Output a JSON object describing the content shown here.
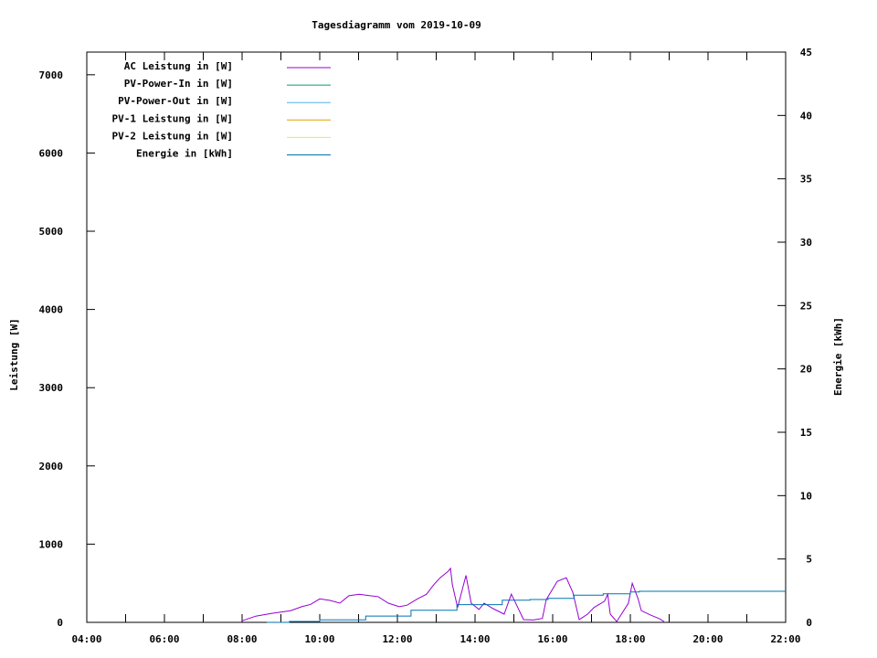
{
  "chart_data": {
    "type": "line",
    "title": "Tagesdiagramm vom 2019-10-09",
    "ylabel": "Leistung [W]",
    "y2label": "Energie [kWh]",
    "xlim": [
      "04:00",
      "22:00"
    ],
    "ylim": [
      0,
      7290
    ],
    "y2lim": [
      0,
      45
    ],
    "x_ticks": [
      "04:00",
      "06:00",
      "08:00",
      "10:00",
      "12:00",
      "14:00",
      "16:00",
      "18:00",
      "20:00",
      "22:00"
    ],
    "y_ticks": [
      0,
      1000,
      2000,
      3000,
      4000,
      5000,
      6000,
      7000
    ],
    "y2_ticks": [
      0,
      5,
      10,
      15,
      20,
      25,
      30,
      35,
      40,
      45
    ],
    "grid": false,
    "legend_position": "top-left",
    "series": [
      {
        "name": "AC Leistung in [W]",
        "color": "#9400d3",
        "axis": "left",
        "x": [
          "08:00",
          "08:21",
          "08:45",
          "09:15",
          "09:32",
          "09:46",
          "10:00",
          "10:16",
          "10:31",
          "10:45",
          "11:01",
          "11:18",
          "11:30",
          "11:46",
          "12:03",
          "12:15",
          "12:31",
          "12:45",
          "12:56",
          "13:06",
          "13:18",
          "13:22",
          "13:25",
          "13:33",
          "13:46",
          "13:54",
          "14:06",
          "14:14",
          "14:28",
          "14:45",
          "14:56",
          "15:02",
          "15:15",
          "15:30",
          "15:44",
          "15:50",
          "16:07",
          "16:21",
          "16:31",
          "16:41",
          "16:54",
          "17:04",
          "17:20",
          "17:25",
          "17:29",
          "17:39",
          "17:57",
          "18:03",
          "18:12",
          "18:17",
          "18:31",
          "18:45",
          "18:52"
        ],
        "y": [
          20,
          80,
          115,
          150,
          200,
          230,
          300,
          280,
          245,
          340,
          360,
          340,
          330,
          245,
          200,
          220,
          300,
          360,
          480,
          570,
          650,
          690,
          480,
          190,
          600,
          245,
          165,
          245,
          175,
          105,
          360,
          260,
          35,
          30,
          50,
          290,
          525,
          570,
          385,
          35,
          105,
          190,
          270,
          360,
          105,
          10,
          245,
          500,
          300,
          150,
          95,
          45,
          10
        ]
      },
      {
        "name": "PV-Power-In in [W]",
        "color": "#009e73",
        "axis": "left",
        "x": [],
        "y": []
      },
      {
        "name": "PV-Power-Out in [W]",
        "color": "#56b4e9",
        "axis": "left",
        "x": [],
        "y": []
      },
      {
        "name": "PV-1 Leistung in [W]",
        "color": "#e69f00",
        "axis": "left",
        "x": [],
        "y": []
      },
      {
        "name": "PV-2 Leistung in [W]",
        "color": "#f0e442",
        "axis": "left",
        "x": [],
        "y": []
      },
      {
        "name": "Energie in [kWh]",
        "color": "#0072b2",
        "axis": "right",
        "x": [
          "08:38",
          "09:13",
          "10:00",
          "11:11",
          "12:21",
          "13:32",
          "14:42",
          "15:25",
          "15:53",
          "16:33",
          "17:18",
          "18:00",
          "18:14",
          "22:00"
        ],
        "y": [
          0,
          0.07,
          0.2,
          0.5,
          0.95,
          1.4,
          1.75,
          1.8,
          1.9,
          2.15,
          2.25,
          2.4,
          2.45,
          2.45
        ]
      }
    ]
  }
}
